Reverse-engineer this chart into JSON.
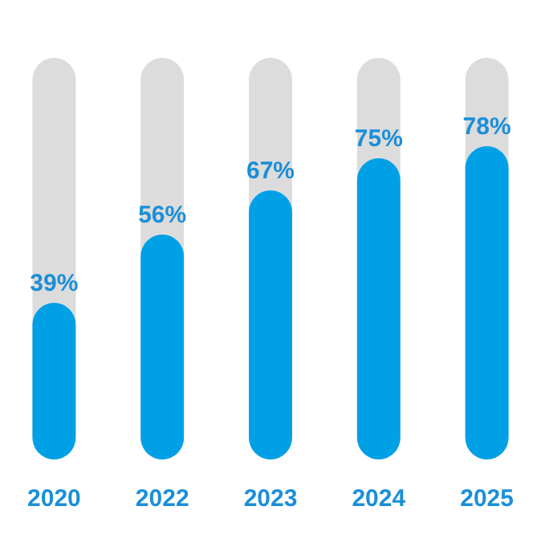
{
  "chart_data": {
    "type": "bar",
    "categories": [
      "2020",
      "2022",
      "2023",
      "2024",
      "2025"
    ],
    "values": [
      39,
      56,
      67,
      75,
      78
    ],
    "value_labels": [
      "39%",
      "56%",
      "67%",
      "75%",
      "78%"
    ],
    "color": "#00a0e6",
    "ylim": [
      0,
      100
    ],
    "tick_labels": "x",
    "grid": false,
    "legend": false
  }
}
